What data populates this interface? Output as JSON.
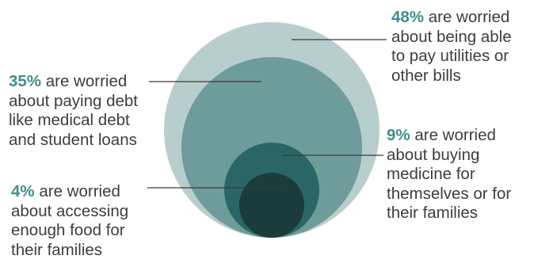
{
  "chart_data": {
    "type": "nested-circles",
    "unit": "%",
    "items": [
      {
        "value": 48,
        "pct_text": "48%",
        "lines": [
          "are worried",
          "about being able",
          "to pay utilities or",
          "other bills"
        ],
        "color": "#b8cecd"
      },
      {
        "value": 35,
        "pct_text": "35%",
        "lines": [
          "are worried",
          "about paying debt",
          "like medical debt",
          "and student loans"
        ],
        "color": "#6e9c9b"
      },
      {
        "value": 9,
        "pct_text": "9%",
        "lines": [
          "are worried",
          "about buying",
          "medicine for",
          "themselves or for",
          "their families"
        ],
        "color": "#2b6666"
      },
      {
        "value": 4,
        "pct_text": "4%",
        "lines": [
          "are worried",
          "about accessing",
          "enough food for",
          "their families"
        ],
        "color": "#1a3c3b"
      }
    ]
  },
  "colors": {
    "percent_text": "#3f8e8a",
    "body_text": "#3d3d3d",
    "leader_line": "#3a3a3a"
  }
}
